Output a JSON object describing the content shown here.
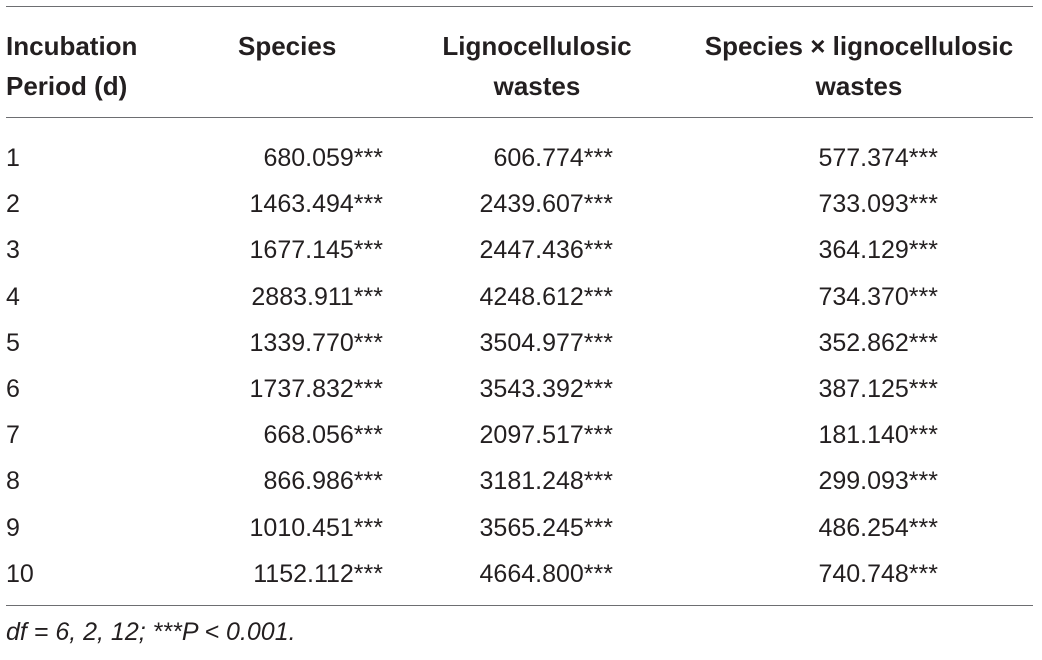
{
  "table": {
    "headers": {
      "period": [
        "Incubation",
        "Period (d)"
      ],
      "species": [
        "Species"
      ],
      "ligno": [
        "Lignocellulosic",
        "wastes"
      ],
      "interaction": [
        "Species × lignocellulosic",
        "wastes"
      ]
    },
    "rows": [
      {
        "period": "1",
        "species": "680.059***",
        "ligno": "606.774***",
        "interaction": "577.374***"
      },
      {
        "period": "2",
        "species": "1463.494***",
        "ligno": "2439.607***",
        "interaction": "733.093***"
      },
      {
        "period": "3",
        "species": "1677.145***",
        "ligno": "2447.436***",
        "interaction": "364.129***"
      },
      {
        "period": "4",
        "species": "2883.911***",
        "ligno": "4248.612***",
        "interaction": "734.370***"
      },
      {
        "period": "5",
        "species": "1339.770***",
        "ligno": "3504.977***",
        "interaction": "352.862***"
      },
      {
        "period": "6",
        "species": "1737.832***",
        "ligno": "3543.392***",
        "interaction": "387.125***"
      },
      {
        "period": "7",
        "species": "668.056***",
        "ligno": "2097.517***",
        "interaction": "181.140***"
      },
      {
        "period": "8",
        "species": "866.986***",
        "ligno": "3181.248***",
        "interaction": "299.093***"
      },
      {
        "period": "9",
        "species": "1010.451***",
        "ligno": "3565.245***",
        "interaction": "486.254***"
      },
      {
        "period": "10",
        "species": "1152.112***",
        "ligno": "4664.800***",
        "interaction": "740.748***"
      }
    ],
    "footnote": "df = 6, 2, 12; ***P < 0.001."
  }
}
